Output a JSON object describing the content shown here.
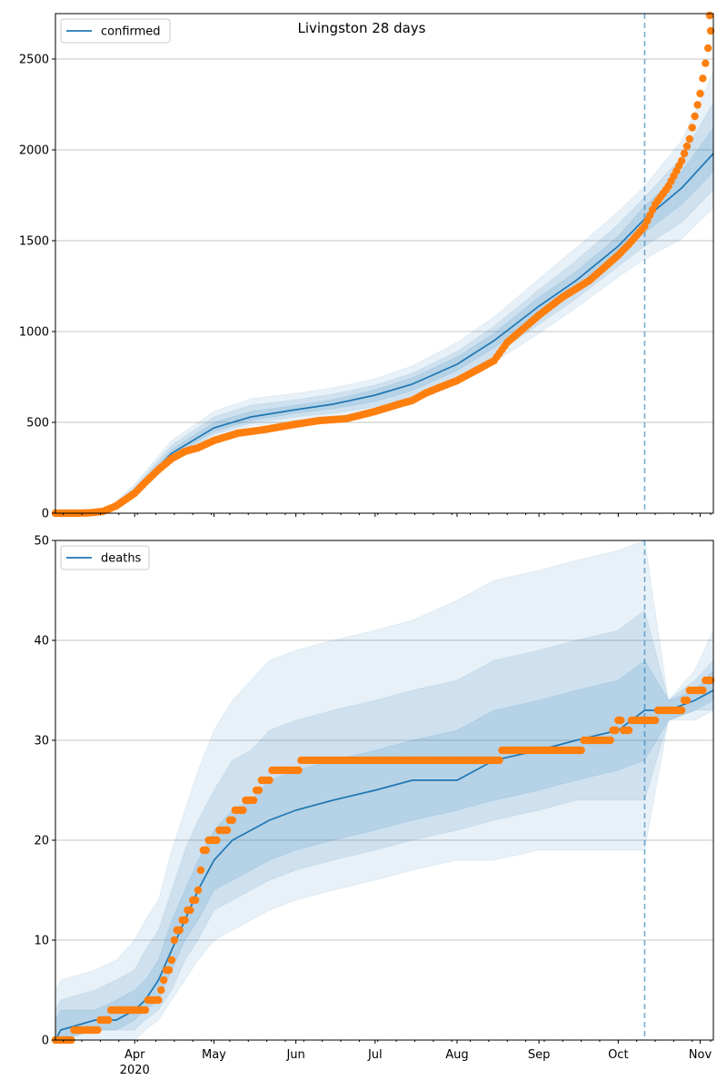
{
  "chart_data": [
    {
      "type": "line",
      "title": "Livingston 28 days",
      "legend": [
        "confirmed"
      ],
      "legend_position": "top-left",
      "grid": "horizontal",
      "x_range": [
        "2020-03-02",
        "2020-11-06"
      ],
      "ylim": [
        0,
        2750
      ],
      "yticks": [
        0,
        500,
        1000,
        1500,
        2000,
        2500
      ],
      "xticks": [
        {
          "date": "2020-04-01",
          "label": "Apr",
          "sublabel": "2020"
        },
        {
          "date": "2020-05-01",
          "label": "May"
        },
        {
          "date": "2020-06-01",
          "label": "Jun"
        },
        {
          "date": "2020-07-01",
          "label": "Jul"
        },
        {
          "date": "2020-08-01",
          "label": "Aug"
        },
        {
          "date": "2020-09-01",
          "label": "Sep"
        },
        {
          "date": "2020-10-01",
          "label": "Oct"
        },
        {
          "date": "2020-11-01",
          "label": "Nov"
        }
      ],
      "vline_date": "2020-10-11",
      "colors": {
        "line": "#1f77b4",
        "points": "#ff7f0e",
        "band": "#1f77b4",
        "vline": "#1f77b4"
      },
      "model": {
        "dates": [
          "2020-03-02",
          "2020-03-15",
          "2020-03-22",
          "2020-04-01",
          "2020-04-15",
          "2020-05-01",
          "2020-05-15",
          "2020-06-01",
          "2020-06-15",
          "2020-07-01",
          "2020-07-15",
          "2020-08-01",
          "2020-08-15",
          "2020-09-01",
          "2020-09-15",
          "2020-10-01",
          "2020-10-11",
          "2020-10-25",
          "2020-11-06"
        ],
        "median": [
          0,
          3,
          15,
          120,
          330,
          470,
          530,
          570,
          600,
          650,
          710,
          820,
          950,
          1140,
          1280,
          1470,
          1620,
          1790,
          1980
        ],
        "bands": [
          {
            "lower": [
              0,
              1,
              8,
              95,
              280,
              420,
              480,
              510,
              530,
              560,
              610,
              710,
              830,
              990,
              1130,
              1300,
              1400,
              1510,
              1680
            ],
            "upper": [
              2,
              6,
              25,
              160,
              400,
              560,
              630,
              660,
              690,
              740,
              810,
              940,
              1080,
              1290,
              1460,
              1660,
              1800,
              2050,
              2430
            ]
          },
          {
            "lower": [
              0,
              2,
              10,
              103,
              295,
              435,
              495,
              530,
              550,
              585,
              640,
              745,
              870,
              1040,
              1180,
              1360,
              1470,
              1600,
              1780
            ],
            "upper": [
              1,
              5,
              22,
              145,
              375,
              530,
              595,
              625,
              655,
              705,
              770,
              890,
              1030,
              1230,
              1390,
              1590,
              1740,
              1960,
              2260
            ]
          },
          {
            "lower": [
              0,
              2,
              12,
              110,
              310,
              450,
              510,
              550,
              575,
              615,
              675,
              785,
              910,
              1090,
              1230,
              1415,
              1545,
              1700,
              1880
            ],
            "upper": [
              1,
              4,
              18,
              130,
              352,
              500,
              560,
              595,
              625,
              680,
              745,
              860,
              990,
              1190,
              1330,
              1525,
              1690,
              1880,
              2120
            ]
          }
        ]
      },
      "observed": {
        "dates": [
          "2020-03-02",
          "2020-03-10",
          "2020-03-15",
          "2020-03-20",
          "2020-03-25",
          "2020-04-01",
          "2020-04-05",
          "2020-04-10",
          "2020-04-15",
          "2020-04-20",
          "2020-04-25",
          "2020-05-01",
          "2020-05-10",
          "2020-05-20",
          "2020-06-01",
          "2020-06-10",
          "2020-06-20",
          "2020-07-01",
          "2020-07-10",
          "2020-07-15",
          "2020-07-20",
          "2020-07-25",
          "2020-08-01",
          "2020-08-10",
          "2020-08-15",
          "2020-08-20",
          "2020-09-01",
          "2020-09-10",
          "2020-09-20",
          "2020-10-01",
          "2020-10-05",
          "2020-10-11",
          "2020-10-15",
          "2020-10-20",
          "2020-10-25",
          "2020-10-28",
          "2020-11-01",
          "2020-11-04",
          "2020-11-06"
        ],
        "values": [
          0,
          0,
          2,
          10,
          40,
          110,
          170,
          240,
          300,
          340,
          360,
          400,
          440,
          460,
          490,
          510,
          520,
          560,
          600,
          620,
          660,
          690,
          730,
          800,
          840,
          940,
          1090,
          1190,
          1280,
          1420,
          1480,
          1580,
          1700,
          1800,
          1940,
          2060,
          2310,
          2560,
          2750
        ]
      }
    },
    {
      "type": "line",
      "legend": [
        "deaths"
      ],
      "legend_position": "top-left",
      "grid": "horizontal",
      "x_range": [
        "2020-03-02",
        "2020-11-06"
      ],
      "ylim": [
        0,
        50
      ],
      "yticks": [
        0,
        10,
        20,
        30,
        40,
        50
      ],
      "xticks": [
        {
          "date": "2020-04-01",
          "label": "Apr",
          "sublabel": "2020"
        },
        {
          "date": "2020-05-01",
          "label": "May"
        },
        {
          "date": "2020-06-01",
          "label": "Jun"
        },
        {
          "date": "2020-07-01",
          "label": "Jul"
        },
        {
          "date": "2020-08-01",
          "label": "Aug"
        },
        {
          "date": "2020-09-01",
          "label": "Sep"
        },
        {
          "date": "2020-10-01",
          "label": "Oct"
        },
        {
          "date": "2020-11-01",
          "label": "Nov"
        }
      ],
      "vline_date": "2020-10-11",
      "colors": {
        "line": "#1f77b4",
        "points": "#ff7f0e",
        "band": "#1f77b4",
        "vline": "#1f77b4"
      },
      "model": {
        "dates": [
          "2020-03-02",
          "2020-03-04",
          "2020-03-17",
          "2020-03-25",
          "2020-04-01",
          "2020-04-05",
          "2020-04-10",
          "2020-04-15",
          "2020-04-20",
          "2020-04-25",
          "2020-05-01",
          "2020-05-08",
          "2020-05-15",
          "2020-05-22",
          "2020-06-01",
          "2020-06-15",
          "2020-07-01",
          "2020-07-15",
          "2020-08-01",
          "2020-08-15",
          "2020-09-01",
          "2020-09-15",
          "2020-10-01",
          "2020-10-11",
          "2020-10-20",
          "2020-10-30",
          "2020-11-06"
        ],
        "median": [
          0,
          1,
          2,
          2,
          3,
          4,
          6,
          9,
          12,
          15,
          18,
          20,
          21,
          22,
          23,
          24,
          25,
          26,
          26,
          28,
          29,
          30,
          31,
          33,
          33,
          34,
          35
        ],
        "bands": [
          {
            "lower": [
              0,
              0,
              0,
              0,
              0,
              1,
              2,
              4,
              6,
              8,
              10,
              11,
              12,
              13,
              14,
              15,
              16,
              17,
              18,
              18,
              19,
              19,
              19,
              19,
              32,
              32,
              33
            ],
            "upper": [
              5,
              6,
              7,
              8,
              10,
              12,
              14,
              19,
              23,
              27,
              31,
              34,
              36,
              38,
              39,
              40,
              41,
              42,
              44,
              46,
              47,
              48,
              49,
              50,
              34,
              37,
              41
            ]
          },
          {
            "lower": [
              0,
              0,
              1,
              1,
              1,
              2,
              3,
              5,
              8,
              10,
              13,
              14,
              15,
              16,
              17,
              18,
              19,
              20,
              21,
              22,
              23,
              24,
              24,
              24,
              32,
              33,
              33
            ],
            "upper": [
              3,
              4,
              5,
              6,
              7,
              9,
              11,
              15,
              19,
              22,
              25,
              28,
              29,
              31,
              32,
              33,
              34,
              35,
              36,
              38,
              39,
              40,
              41,
              43,
              34,
              36,
              38
            ]
          },
          {
            "lower": [
              0,
              0,
              1,
              1,
              2,
              3,
              4,
              7,
              10,
              12,
              15,
              16,
              17,
              18,
              19,
              20,
              21,
              22,
              23,
              24,
              25,
              26,
              27,
              28,
              32,
              33,
              34
            ],
            "upper": [
              2,
              3,
              3,
              4,
              5,
              6,
              8,
              12,
              15,
              18,
              21,
              23,
              24,
              26,
              27,
              28,
              29,
              30,
              31,
              33,
              34,
              35,
              36,
              38,
              34,
              35,
              37
            ]
          }
        ]
      },
      "observed": {
        "dates": [
          "2020-03-02",
          "2020-03-16",
          "2020-03-21",
          "2020-03-25",
          "2020-04-01",
          "2020-04-10",
          "2020-04-12",
          "2020-04-15",
          "2020-04-17",
          "2020-04-20",
          "2020-04-25",
          "2020-04-27",
          "2020-05-01",
          "2020-05-05",
          "2020-05-10",
          "2020-05-15",
          "2020-05-20",
          "2020-05-25",
          "2020-06-01",
          "2020-06-04",
          "2020-06-10",
          "2020-07-01",
          "2020-08-01",
          "2020-08-15",
          "2020-08-20",
          "2020-09-01",
          "2020-09-15",
          "2020-09-20",
          "2020-09-28",
          "2020-10-01",
          "2020-10-04",
          "2020-10-08",
          "2020-10-12",
          "2020-10-20",
          "2020-10-25",
          "2020-10-29",
          "2020-11-01",
          "2020-11-04",
          "2020-11-06"
        ],
        "values": [
          0,
          1,
          2,
          3,
          3,
          4,
          6,
          8,
          11,
          12,
          15,
          19,
          20,
          21,
          23,
          24,
          26,
          27,
          27,
          28,
          28,
          28,
          28,
          28,
          29,
          29,
          29,
          30,
          30,
          32,
          31,
          32,
          32,
          33,
          33,
          35,
          35,
          36,
          36
        ]
      }
    }
  ]
}
